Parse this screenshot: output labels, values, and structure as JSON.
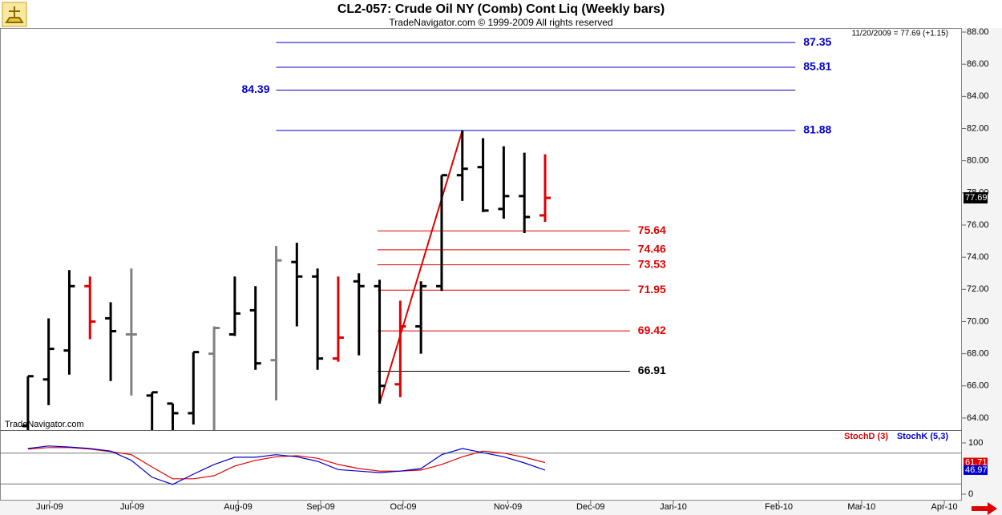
{
  "chart_data": [
    {
      "type": "ohlc",
      "title": "CL2-057:  Crude Oil NY (Comb) Cont Liq  (Weekly bars)",
      "subtitle": "TradeNavigator.com © 1999-2009 All rights reserved",
      "header": "11/20/2009 = 77.69 (+1.15)",
      "watermark": "TradeNavigator.com",
      "last_value": 77.69,
      "xlim": [
        -1.35,
        45.15
      ],
      "ylim": [
        63.25,
        88.25
      ],
      "yticks": [
        {
          "value": 64,
          "label": "64.00"
        },
        {
          "value": 66,
          "label": "66.00"
        },
        {
          "value": 68,
          "label": "68.00"
        },
        {
          "value": 70,
          "label": "70.00"
        },
        {
          "value": 72,
          "label": "72.00"
        },
        {
          "value": 74,
          "label": "74.00"
        },
        {
          "value": 76,
          "label": "76.00"
        },
        {
          "value": 78,
          "label": "78.00"
        },
        {
          "value": 80,
          "label": "80.00"
        },
        {
          "value": 82,
          "label": "82.00"
        },
        {
          "value": 84,
          "label": "84.00"
        },
        {
          "value": 86,
          "label": "86.00"
        },
        {
          "value": 88,
          "label": "88.00"
        }
      ],
      "open": [
        63.5,
        66.4,
        68.2,
        72.2,
        70.2,
        69.2,
        65.4,
        64.9,
        64.3,
        68.0,
        69.2,
        70.7,
        67.6,
        73.7,
        72.8,
        67.7,
        72.5,
        72.2,
        66.1,
        69.7,
        72.2,
        79.1,
        79.6,
        77.0,
        77.8,
        76.6
      ],
      "high": [
        66.6,
        70.2,
        73.2,
        72.8,
        71.2,
        73.3,
        65.6,
        64.9,
        68.1,
        69.7,
        72.8,
        72.2,
        74.7,
        74.9,
        73.3,
        72.8,
        73.0,
        72.6,
        71.3,
        72.5,
        79.1,
        81.9,
        81.4,
        80.9,
        80.5,
        80.4
      ],
      "low": [
        62.5,
        64.8,
        66.7,
        68.9,
        66.3,
        65.4,
        62.8,
        62.8,
        63.6,
        62.8,
        69.1,
        67.0,
        65.1,
        69.7,
        67.0,
        67.5,
        67.9,
        64.9,
        65.3,
        68.0,
        71.9,
        77.5,
        76.8,
        76.4,
        75.5,
        76.2
      ],
      "close": [
        66.6,
        68.3,
        72.2,
        70.0,
        69.4,
        69.2,
        65.6,
        64.3,
        68.1,
        69.6,
        70.5,
        67.4,
        73.8,
        72.8,
        67.7,
        69.0,
        72.2,
        66.0,
        69.7,
        72.2,
        79.1,
        79.5,
        76.9,
        77.8,
        76.5,
        77.69
      ],
      "colors": [
        "#000000",
        "#000000",
        "#000000",
        "#e00000",
        "#000000",
        "#808080",
        "#000000",
        "#000000",
        "#000000",
        "#808080",
        "#000000",
        "#000000",
        "#808080",
        "#000000",
        "#000000",
        "#e00000",
        "#000000",
        "#000000",
        "#e00000",
        "#000000",
        "#000000",
        "#000000",
        "#000000",
        "#000000",
        "#000000",
        "#e00000"
      ],
      "levels": [
        {
          "value": 87.35,
          "color": "#0000cc",
          "x": [
            12,
            37.1
          ],
          "label_side": "right"
        },
        {
          "value": 85.81,
          "color": "#0000cc",
          "x": [
            12,
            37.1
          ],
          "label_side": "right"
        },
        {
          "value": 84.39,
          "color": "#0000cc",
          "x": [
            12,
            37.1
          ],
          "label_side": "left"
        },
        {
          "value": 81.88,
          "color": "#0000cc",
          "x": [
            12,
            37.1
          ],
          "label_side": "right"
        },
        {
          "value": 75.64,
          "color": "#e00000",
          "x": [
            16.9,
            29.1
          ],
          "label_side": "right"
        },
        {
          "value": 74.46,
          "color": "#e00000",
          "x": [
            16.9,
            29.1
          ],
          "label_side": "right"
        },
        {
          "value": 73.53,
          "color": "#e00000",
          "x": [
            16.9,
            29.1
          ],
          "label_side": "right"
        },
        {
          "value": 71.95,
          "color": "#e00000",
          "x": [
            16.9,
            29.1
          ],
          "label_side": "right"
        },
        {
          "value": 69.42,
          "color": "#e00000",
          "x": [
            16.9,
            29.1
          ],
          "label_side": "right"
        },
        {
          "value": 66.91,
          "color": "#000000",
          "x": [
            16.9,
            29.1
          ],
          "label_side": "right"
        }
      ],
      "trendline": {
        "color": "#e00000",
        "x": [
          17,
          21
        ],
        "y": [
          64.9,
          81.88
        ]
      }
    },
    {
      "type": "line",
      "xlim": [
        -1.35,
        45.15
      ],
      "ylim": [
        -12.5,
        125
      ],
      "yticks": [
        0,
        100
      ],
      "levels": [
        80,
        20
      ],
      "xticks": [
        {
          "value": 1.05,
          "label": "Jun-09"
        },
        {
          "value": 5.04,
          "label": "Jul-09"
        },
        {
          "value": 10.16,
          "label": "Aug-09"
        },
        {
          "value": 14.15,
          "label": "Sep-09"
        },
        {
          "value": 18.14,
          "label": "Oct-09"
        },
        {
          "value": 23.2,
          "label": "Nov-09"
        },
        {
          "value": 27.2,
          "label": "Dec-09"
        },
        {
          "value": 31.2,
          "label": "Jan-10"
        },
        {
          "value": 36.3,
          "label": "Feb-10"
        },
        {
          "value": 40.3,
          "label": "Mar-10"
        },
        {
          "value": 44.3,
          "label": "Apr-10"
        }
      ],
      "series": [
        {
          "name": "StochD (3)",
          "color": "#e00000",
          "values": [
            88,
            91,
            91,
            88,
            83,
            77,
            53,
            30,
            30,
            36,
            55,
            66,
            73,
            75,
            70,
            58,
            50,
            45,
            45,
            47,
            58,
            73,
            84,
            80,
            72,
            61.71
          ]
        },
        {
          "name": "StochK (5,3)",
          "color": "#0000cc",
          "values": [
            89,
            94,
            92,
            89,
            84,
            66,
            33,
            19,
            39,
            58,
            72,
            72,
            77,
            73,
            64,
            48,
            45,
            42,
            45,
            50,
            77,
            89,
            81,
            73,
            61,
            46.97
          ]
        }
      ]
    }
  ]
}
